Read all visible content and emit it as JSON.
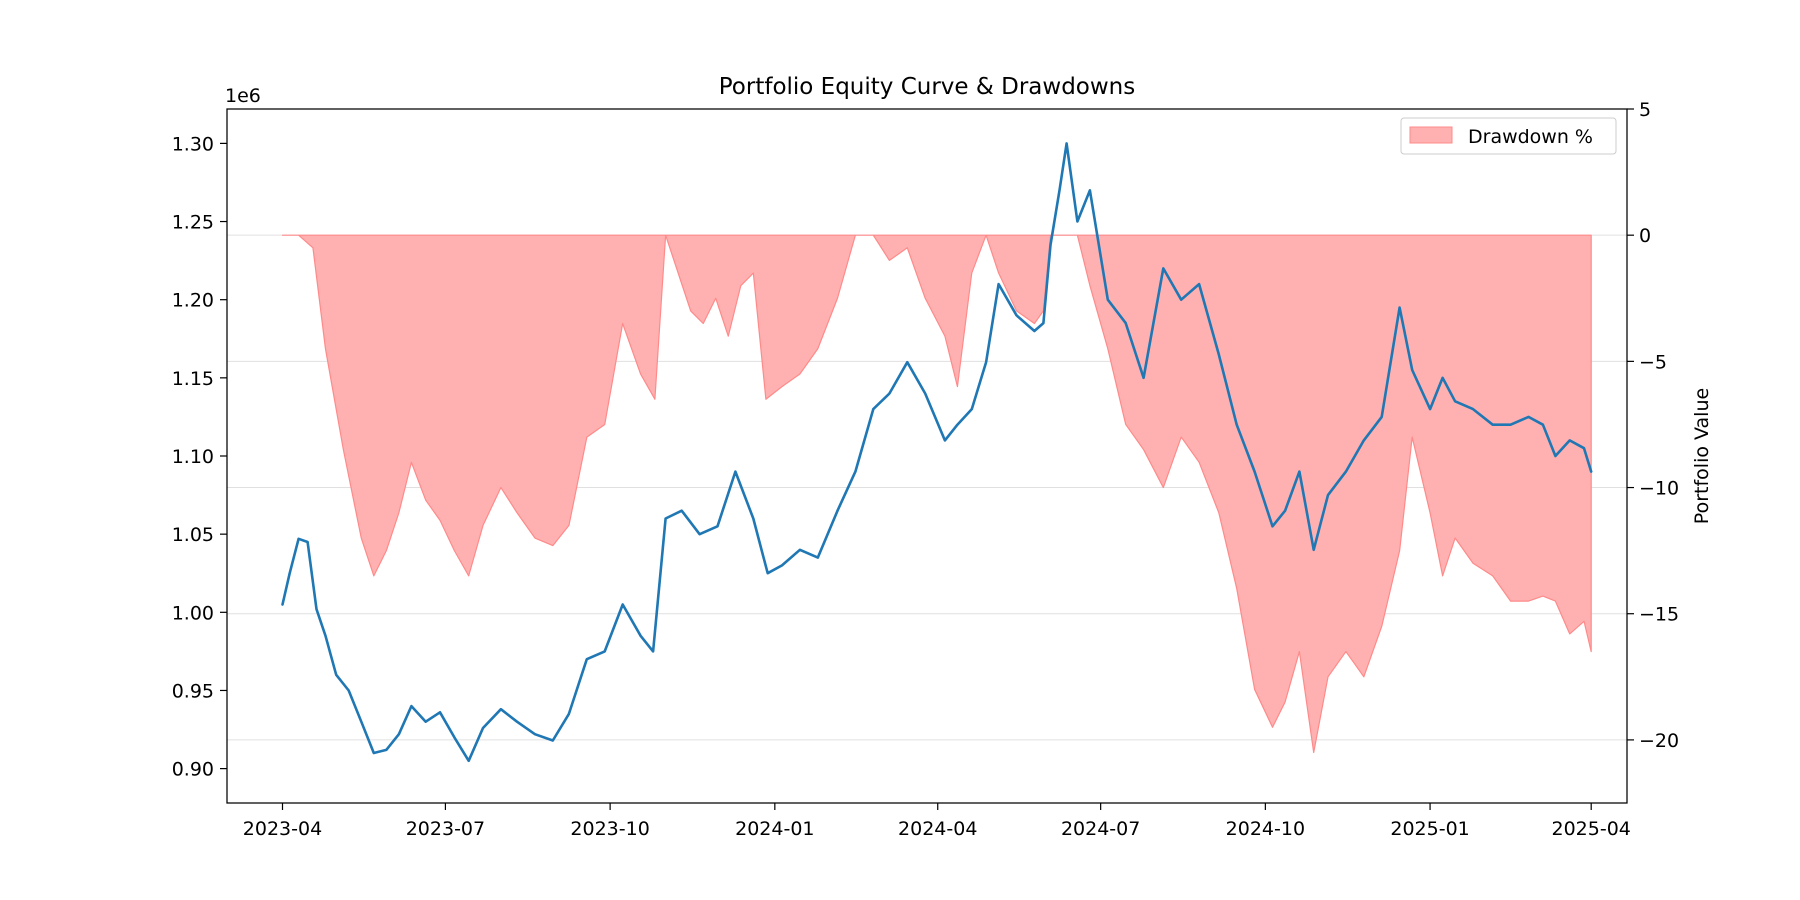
{
  "chart_data": {
    "type": "line",
    "title": "Portfolio Equity Curve & Drawdowns",
    "left_axis": {
      "label": "",
      "offset_text": "1e6",
      "ylim": [
        0.878,
        1.322
      ],
      "ticks": [
        0.9,
        0.95,
        1.0,
        1.05,
        1.1,
        1.15,
        1.2,
        1.25,
        1.3
      ],
      "tick_labels": [
        "0.90",
        "0.95",
        "1.00",
        "1.05",
        "1.10",
        "1.15",
        "1.20",
        "1.25",
        "1.30"
      ]
    },
    "right_axis": {
      "label": "Portfolio Value",
      "ylim": [
        -22.5,
        5
      ],
      "ticks": [
        -20,
        -15,
        -10,
        -5,
        0,
        5
      ],
      "tick_labels": [
        "−20",
        "−15",
        "−10",
        "−5",
        "0",
        "5"
      ],
      "grid": true
    },
    "x_axis": {
      "label": "",
      "xlim": [
        "2023-03-01",
        "2025-04-21"
      ],
      "ticks": [
        "2023-04-01",
        "2023-07-01",
        "2023-10-01",
        "2024-01-01",
        "2024-04-01",
        "2024-07-01",
        "2024-10-01",
        "2025-01-01",
        "2025-04-01"
      ],
      "tick_labels": [
        "2023-04",
        "2023-07",
        "2023-10",
        "2024-01",
        "2024-04",
        "2024-07",
        "2024-10",
        "2025-01",
        "2025-04"
      ]
    },
    "legend": {
      "position": "top-right",
      "entries": [
        "Drawdown %"
      ]
    },
    "colors": {
      "equity": "#1f77b4",
      "drawdown_fill": "#ffb1b1",
      "drawdown_edge": "#ff8a8a"
    },
    "series": [
      {
        "name": "",
        "axis": "left",
        "style": "line",
        "x": [
          "2023-04-01",
          "2023-04-05",
          "2023-04-10",
          "2023-04-15",
          "2023-04-20",
          "2023-04-25",
          "2023-05-01",
          "2023-05-08",
          "2023-05-15",
          "2023-05-22",
          "2023-05-29",
          "2023-06-05",
          "2023-06-12",
          "2023-06-20",
          "2023-06-28",
          "2023-07-06",
          "2023-07-14",
          "2023-07-22",
          "2023-08-01",
          "2023-08-10",
          "2023-08-20",
          "2023-08-30",
          "2023-09-08",
          "2023-09-18",
          "2023-09-28",
          "2023-10-08",
          "2023-10-18",
          "2023-10-25",
          "2023-11-01",
          "2023-11-10",
          "2023-11-20",
          "2023-11-30",
          "2023-12-10",
          "2023-12-20",
          "2023-12-28",
          "2024-01-05",
          "2024-01-15",
          "2024-01-25",
          "2024-02-05",
          "2024-02-15",
          "2024-02-25",
          "2024-03-05",
          "2024-03-15",
          "2024-03-25",
          "2024-04-05",
          "2024-04-12",
          "2024-04-20",
          "2024-04-28",
          "2024-05-05",
          "2024-05-15",
          "2024-05-25",
          "2024-05-30",
          "2024-06-03",
          "2024-06-08",
          "2024-06-12",
          "2024-06-18",
          "2024-06-25",
          "2024-07-05",
          "2024-07-15",
          "2024-07-25",
          "2024-08-05",
          "2024-08-15",
          "2024-08-25",
          "2024-09-05",
          "2024-09-15",
          "2024-09-25",
          "2024-10-05",
          "2024-10-12",
          "2024-10-20",
          "2024-10-28",
          "2024-11-05",
          "2024-11-15",
          "2024-11-25",
          "2024-12-05",
          "2024-12-15",
          "2024-12-22",
          "2025-01-01",
          "2025-01-08",
          "2025-01-15",
          "2025-01-25",
          "2025-02-05",
          "2025-02-15",
          "2025-02-25",
          "2025-03-05",
          "2025-03-12",
          "2025-03-20",
          "2025-03-28",
          "2025-04-01"
        ],
        "values": [
          1.005,
          1.025,
          1.047,
          1.045,
          1.002,
          0.985,
          0.96,
          0.95,
          0.93,
          0.91,
          0.912,
          0.922,
          0.94,
          0.93,
          0.936,
          0.92,
          0.905,
          0.926,
          0.938,
          0.93,
          0.922,
          0.918,
          0.935,
          0.97,
          0.975,
          1.005,
          0.985,
          0.975,
          1.06,
          1.065,
          1.05,
          1.055,
          1.09,
          1.06,
          1.025,
          1.03,
          1.04,
          1.035,
          1.065,
          1.09,
          1.13,
          1.14,
          1.16,
          1.14,
          1.11,
          1.12,
          1.13,
          1.16,
          1.21,
          1.19,
          1.18,
          1.185,
          1.235,
          1.27,
          1.3,
          1.25,
          1.27,
          1.2,
          1.185,
          1.15,
          1.22,
          1.2,
          1.21,
          1.165,
          1.12,
          1.09,
          1.055,
          1.065,
          1.09,
          1.04,
          1.075,
          1.09,
          1.11,
          1.125,
          1.195,
          1.155,
          1.13,
          1.15,
          1.135,
          1.13,
          1.12,
          1.12,
          1.125,
          1.12,
          1.1,
          1.11,
          1.105,
          1.09
        ]
      },
      {
        "name": "Drawdown %",
        "axis": "right",
        "style": "area",
        "x": [
          "2023-04-01",
          "2023-04-10",
          "2023-04-18",
          "2023-04-25",
          "2023-05-05",
          "2023-05-15",
          "2023-05-22",
          "2023-05-29",
          "2023-06-05",
          "2023-06-12",
          "2023-06-20",
          "2023-06-28",
          "2023-07-06",
          "2023-07-14",
          "2023-07-22",
          "2023-08-01",
          "2023-08-10",
          "2023-08-20",
          "2023-08-30",
          "2023-09-08",
          "2023-09-18",
          "2023-09-28",
          "2023-10-08",
          "2023-10-18",
          "2023-10-26",
          "2023-11-01",
          "2023-11-08",
          "2023-11-15",
          "2023-11-22",
          "2023-11-29",
          "2023-12-06",
          "2023-12-13",
          "2023-12-20",
          "2023-12-27",
          "2024-01-05",
          "2024-01-15",
          "2024-01-25",
          "2024-02-05",
          "2024-02-15",
          "2024-02-25",
          "2024-03-05",
          "2024-03-15",
          "2024-03-25",
          "2024-04-05",
          "2024-04-12",
          "2024-04-20",
          "2024-04-28",
          "2024-05-05",
          "2024-05-15",
          "2024-05-25",
          "2024-05-30",
          "2024-06-03",
          "2024-06-08",
          "2024-06-12",
          "2024-06-18",
          "2024-06-25",
          "2024-07-05",
          "2024-07-15",
          "2024-07-25",
          "2024-08-05",
          "2024-08-15",
          "2024-08-25",
          "2024-09-05",
          "2024-09-15",
          "2024-09-25",
          "2024-10-05",
          "2024-10-12",
          "2024-10-20",
          "2024-10-28",
          "2024-11-05",
          "2024-11-15",
          "2024-11-25",
          "2024-12-05",
          "2024-12-15",
          "2024-12-22",
          "2025-01-01",
          "2025-01-08",
          "2025-01-15",
          "2025-01-25",
          "2025-02-05",
          "2025-02-15",
          "2025-02-25",
          "2025-03-05",
          "2025-03-12",
          "2025-03-20",
          "2025-03-28",
          "2025-04-01"
        ],
        "values": [
          0,
          0,
          -0.5,
          -4.5,
          -8.5,
          -12,
          -13.5,
          -12.5,
          -11,
          -9,
          -10.5,
          -11.3,
          -12.5,
          -13.5,
          -11.5,
          -10,
          -11,
          -12,
          -12.3,
          -11.5,
          -8,
          -7.5,
          -3.5,
          -5.5,
          -6.5,
          0,
          -1.5,
          -3,
          -3.5,
          -2.5,
          -4,
          -2,
          -1.5,
          -6.5,
          -6,
          -5.5,
          -4.5,
          -2.5,
          0,
          0,
          -1,
          -0.5,
          -2.5,
          -4,
          -6,
          -1.5,
          0,
          -1.5,
          -3,
          -3.5,
          -3,
          0,
          0,
          0,
          0,
          -2,
          -4.5,
          -7.5,
          -8.5,
          -10,
          -8,
          -9,
          -11,
          -14,
          -18,
          -19.5,
          -18.5,
          -16.5,
          -20.5,
          -17.5,
          -16.5,
          -17.5,
          -15.5,
          -12.5,
          -8,
          -11,
          -13.5,
          -12,
          -13,
          -13.5,
          -14.5,
          -14.5,
          -14.3,
          -14.5,
          -15.8,
          -15.3,
          -16.5
        ]
      }
    ]
  }
}
